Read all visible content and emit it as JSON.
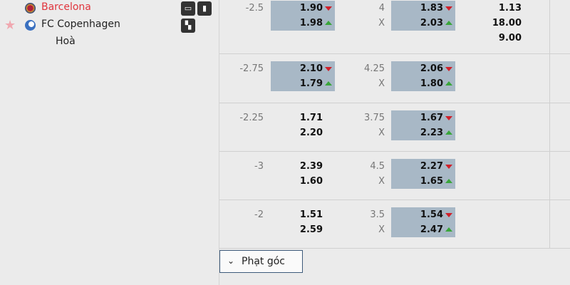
{
  "match": {
    "home": "Barcelona",
    "away": "FC Copenhagen",
    "draw": "Hoà",
    "home_color": "#e0343c"
  },
  "icons": [
    "tv-icon",
    "stats-icon",
    "lineup-icon",
    "star-icon"
  ],
  "rows": [
    {
      "hc": "-2.5",
      "hc_home": "1.90",
      "hc_away": "1.98",
      "hc_hl": true,
      "ou": "4",
      "ou_x": "X",
      "ou_over": "1.83",
      "ou_under": "2.03",
      "ou_hl": true,
      "x12": [
        "1.13",
        "18.00",
        "9.00"
      ]
    },
    {
      "hc": "-2.75",
      "hc_home": "2.10",
      "hc_away": "1.79",
      "hc_hl": true,
      "ou": "4.25",
      "ou_x": "X",
      "ou_over": "2.06",
      "ou_under": "1.80",
      "ou_hl": true
    },
    {
      "hc": "-2.25",
      "hc_home": "1.71",
      "hc_away": "2.20",
      "hc_hl": false,
      "ou": "3.75",
      "ou_x": "X",
      "ou_over": "1.67",
      "ou_under": "2.23",
      "ou_hl": true
    },
    {
      "hc": "-3",
      "hc_home": "2.39",
      "hc_away": "1.60",
      "hc_hl": false,
      "ou": "4.5",
      "ou_x": "X",
      "ou_over": "2.27",
      "ou_under": "1.65",
      "ou_hl": true
    },
    {
      "hc": "-2",
      "hc_home": "1.51",
      "hc_away": "2.59",
      "hc_hl": false,
      "ou": "3.5",
      "ou_x": "X",
      "ou_over": "1.54",
      "ou_under": "2.47",
      "ou_hl": true
    }
  ],
  "corner_button": "Phạt góc",
  "colors": {
    "down": "#d0202a",
    "up": "#3aa63a",
    "highlight": "#a8b8c6"
  }
}
